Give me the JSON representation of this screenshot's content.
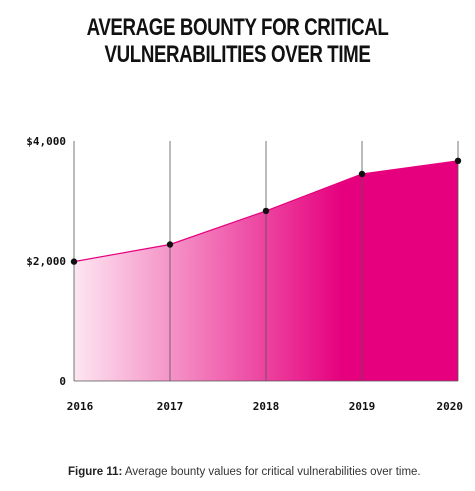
{
  "chart_data": {
    "type": "area",
    "title_lines": [
      "AVERAGE BOUNTY FOR CRITICAL",
      "VULNERABILITIES OVER TIME"
    ],
    "x": [
      "2016",
      "2017",
      "2018",
      "2019",
      "2020"
    ],
    "values": [
      1990,
      2275,
      2835,
      3450,
      3670
    ],
    "y_ticks": [
      {
        "value": 0,
        "label": "0"
      },
      {
        "value": 2000,
        "label": "$2,000"
      },
      {
        "value": 4000,
        "label": "$4,000"
      }
    ],
    "ylim": [
      0,
      4000
    ],
    "xlabel": "",
    "ylabel": "",
    "grid": "vertical lines at each year",
    "legend": "none",
    "colors": {
      "fill_start": "#fde6f1",
      "fill_end": "#e6007e",
      "line": "#e6007e",
      "marker": "#111111",
      "grid": "#555555"
    }
  },
  "caption": {
    "label": "Figure 11:",
    "text": "Average bounty values for critical vulnerabilities over time."
  }
}
